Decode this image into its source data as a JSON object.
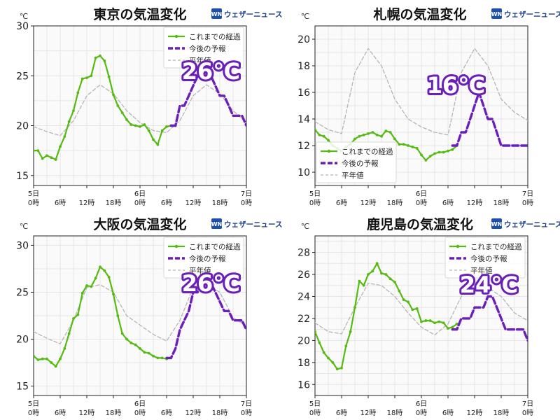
{
  "logo": {
    "icon_text": "WN",
    "text": "ウェザーニュース"
  },
  "unit": "℃",
  "x_ticks": [
    {
      "day": "5日",
      "hour": "0時"
    },
    {
      "day": "",
      "hour": "6時"
    },
    {
      "day": "",
      "hour": "12時"
    },
    {
      "day": "",
      "hour": "18時"
    },
    {
      "day": "6日",
      "hour": "0時"
    },
    {
      "day": "",
      "hour": "6時"
    },
    {
      "day": "",
      "hour": "12時"
    },
    {
      "day": "",
      "hour": "18時"
    },
    {
      "day": "7日",
      "hour": "0時"
    }
  ],
  "legend": {
    "observed": "これまでの経過",
    "forecast": "今後の予報",
    "normal": "平年値"
  },
  "colors": {
    "observed": "#55bb11",
    "forecast": "#6a1fb8",
    "normal": "#b5b5b5",
    "grid": "#e6e6e6",
    "plot_bg": "#fafafa",
    "callout": "#6a1fb8"
  },
  "chart_data": [
    {
      "type": "line",
      "title": "東京の気温変化",
      "ylabel": "℃",
      "xlabel": "",
      "x_unit": "hours since 5日0時",
      "ylim": [
        14,
        30
      ],
      "yticks": [
        15,
        20,
        25,
        30
      ],
      "xlim": [
        0,
        48
      ],
      "grid": true,
      "legend_position": "top-right",
      "callout": "26℃",
      "series": [
        {
          "role": "observed",
          "name": "これまでの経過",
          "x": [
            0,
            1,
            2,
            3,
            4,
            5,
            6,
            7,
            8,
            9,
            10,
            11,
            12,
            13,
            14,
            15,
            16,
            17,
            18,
            19,
            20,
            21,
            22,
            23,
            24,
            25,
            26,
            27,
            28,
            29,
            30,
            31,
            32
          ],
          "y": [
            17.5,
            17.5,
            16.7,
            17.0,
            16.8,
            16.6,
            17.9,
            18.9,
            20.4,
            21.5,
            23.3,
            24.7,
            24.8,
            25.0,
            26.8,
            27.0,
            26.5,
            24.9,
            23.1,
            22.0,
            21.3,
            20.6,
            20.1,
            20.0,
            19.9,
            20.1,
            19.5,
            18.6,
            18.1,
            19.5,
            19.9,
            20.0,
            20.0
          ]
        },
        {
          "role": "forecast",
          "name": "今後の予報",
          "x": [
            31,
            32,
            33,
            34,
            35,
            36,
            37,
            38,
            39,
            40,
            41,
            42,
            43,
            44,
            45,
            46,
            47,
            48
          ],
          "y": [
            20,
            20,
            22,
            22,
            23,
            24,
            25,
            26,
            26,
            25,
            24,
            23,
            23,
            22,
            21,
            21,
            21,
            20
          ]
        },
        {
          "role": "normal",
          "name": "平年値",
          "x": [
            0,
            3,
            6,
            9,
            12,
            15,
            18,
            21,
            24,
            27,
            30,
            33,
            36,
            39,
            42,
            45,
            48
          ],
          "y": [
            19.9,
            19.4,
            19.0,
            20.5,
            23.0,
            24.1,
            23.2,
            21.5,
            20.3,
            19.5,
            19.3,
            20.5,
            23.0,
            24.1,
            23.2,
            21.5,
            20.3
          ]
        }
      ]
    },
    {
      "type": "line",
      "title": "札幌の気温変化",
      "ylabel": "℃",
      "xlabel": "",
      "x_unit": "hours since 5日0時",
      "ylim": [
        9,
        21
      ],
      "yticks": [
        10,
        12,
        14,
        16,
        18,
        20
      ],
      "xlim": [
        0,
        48
      ],
      "grid": true,
      "legend_position": "bottom-left",
      "callout": "16℃",
      "series": [
        {
          "role": "observed",
          "name": "これまでの経過",
          "x": [
            0,
            1,
            2,
            3,
            4,
            5,
            6,
            7,
            8,
            9,
            10,
            11,
            12,
            13,
            14,
            15,
            16,
            17,
            18,
            19,
            20,
            21,
            22,
            23,
            24,
            25,
            26,
            27,
            28,
            29,
            30,
            31,
            32
          ],
          "y": [
            13.2,
            12.8,
            12.7,
            12.4,
            12.0,
            11.8,
            11.6,
            11.9,
            12.1,
            12.5,
            12.7,
            12.8,
            12.9,
            13.0,
            12.8,
            12.7,
            13.1,
            13.0,
            12.5,
            12.1,
            12.1,
            12.0,
            11.9,
            11.8,
            11.3,
            10.9,
            11.2,
            11.4,
            11.5,
            11.5,
            11.6,
            11.7,
            12.0
          ]
        },
        {
          "role": "forecast",
          "name": "今後の予報",
          "x": [
            31,
            32,
            33,
            34,
            35,
            36,
            37,
            38,
            39,
            40,
            41,
            42,
            43,
            44,
            45,
            46,
            47,
            48
          ],
          "y": [
            12,
            12,
            13,
            13,
            14,
            15,
            16,
            15,
            14,
            14,
            13,
            12,
            12,
            12,
            12,
            12,
            12,
            12
          ]
        },
        {
          "role": "normal",
          "name": "平年値",
          "x": [
            0,
            3,
            6,
            9,
            12,
            15,
            18,
            21,
            24,
            27,
            30,
            33,
            36,
            39,
            42,
            45,
            48
          ],
          "y": [
            13.8,
            13.2,
            12.9,
            17.5,
            19.3,
            18.0,
            15.5,
            14.0,
            13.4,
            13.0,
            12.8,
            17.5,
            19.3,
            18.0,
            15.5,
            14.5,
            13.9
          ]
        }
      ]
    },
    {
      "type": "line",
      "title": "大阪の気温変化",
      "ylabel": "℃",
      "xlabel": "",
      "x_unit": "hours since 5日0時",
      "ylim": [
        14,
        31
      ],
      "yticks": [
        15,
        20,
        25,
        30
      ],
      "xlim": [
        0,
        48
      ],
      "grid": true,
      "legend_position": "top-right",
      "callout": "26℃",
      "series": [
        {
          "role": "observed",
          "name": "これまでの経過",
          "x": [
            0,
            1,
            2,
            3,
            4,
            5,
            6,
            7,
            8,
            9,
            10,
            11,
            12,
            13,
            14,
            15,
            16,
            17,
            18,
            19,
            20,
            21,
            22,
            23,
            24,
            25,
            26,
            27,
            28,
            29,
            30,
            31
          ],
          "y": [
            18.2,
            17.8,
            17.9,
            17.9,
            17.5,
            17.1,
            17.9,
            19.0,
            20.6,
            22.2,
            22.6,
            24.9,
            25.7,
            25.6,
            26.5,
            27.7,
            27.3,
            26.6,
            24.8,
            22.5,
            20.6,
            20.0,
            19.6,
            19.4,
            19.0,
            18.6,
            18.5,
            18.2,
            18.0,
            18.0,
            17.9,
            18.0
          ]
        },
        {
          "role": "forecast",
          "name": "今後の予報",
          "x": [
            30,
            31,
            32,
            33,
            34,
            35,
            36,
            37,
            38,
            39,
            40,
            41,
            42,
            43,
            44,
            45,
            46,
            47,
            48
          ],
          "y": [
            18,
            18,
            19,
            21,
            22,
            23,
            25,
            25,
            26,
            26,
            26,
            25,
            24,
            23,
            23,
            22,
            22,
            22,
            21
          ]
        },
        {
          "role": "normal",
          "name": "平年値",
          "x": [
            0,
            3,
            6,
            9,
            12,
            15,
            18,
            21,
            24,
            27,
            30,
            33,
            36,
            39,
            42,
            45,
            48
          ],
          "y": [
            20.8,
            20.1,
            19.5,
            22.0,
            25.5,
            25.8,
            25.0,
            22.5,
            21.5,
            20.5,
            19.8,
            22.0,
            25.5,
            25.8,
            25.0,
            22.3,
            21.4
          ]
        }
      ]
    },
    {
      "type": "line",
      "title": "鹿児島の気温変化",
      "ylabel": "℃",
      "xlabel": "",
      "x_unit": "hours since 5日0時",
      "ylim": [
        15,
        29.5
      ],
      "yticks": [
        16,
        18,
        20,
        22,
        24,
        26,
        28
      ],
      "xlim": [
        0,
        48
      ],
      "grid": true,
      "legend_position": "top-right",
      "callout": "24℃",
      "series": [
        {
          "role": "observed",
          "name": "これまでの経過",
          "x": [
            0,
            1,
            2,
            3,
            4,
            5,
            6,
            7,
            8,
            9,
            10,
            11,
            12,
            13,
            14,
            15,
            16,
            17,
            18,
            19,
            20,
            21,
            22,
            23,
            24,
            25,
            26,
            27,
            28,
            29,
            30,
            31,
            32
          ],
          "y": [
            20.8,
            19.8,
            18.9,
            18.4,
            18.0,
            17.4,
            17.5,
            19.5,
            20.8,
            23.0,
            25.4,
            25.0,
            26.0,
            26.3,
            27.0,
            26.1,
            26.0,
            25.6,
            25.3,
            24.5,
            23.7,
            23.5,
            22.8,
            22.9,
            21.7,
            21.8,
            21.8,
            21.6,
            21.7,
            21.6,
            21.1,
            21.2,
            21.5
          ]
        },
        {
          "role": "forecast",
          "name": "今後の予報",
          "x": [
            31,
            32,
            33,
            34,
            35,
            36,
            37,
            38,
            39,
            40,
            41,
            42,
            43,
            44,
            45,
            46,
            47,
            48
          ],
          "y": [
            21,
            21,
            22,
            22,
            22,
            23,
            23,
            23,
            24,
            24,
            23,
            22,
            21,
            21,
            21,
            21,
            21,
            20
          ]
        },
        {
          "role": "normal",
          "name": "平年値",
          "x": [
            0,
            3,
            6,
            9,
            12,
            15,
            18,
            21,
            24,
            27,
            30,
            33,
            36,
            39,
            42,
            45,
            48
          ],
          "y": [
            21.6,
            20.8,
            20.6,
            23.0,
            25.2,
            25.0,
            24.0,
            22.5,
            21.2,
            20.5,
            21.5,
            24.0,
            25.3,
            24.8,
            24.0,
            22.5,
            21.8
          ]
        }
      ]
    }
  ]
}
